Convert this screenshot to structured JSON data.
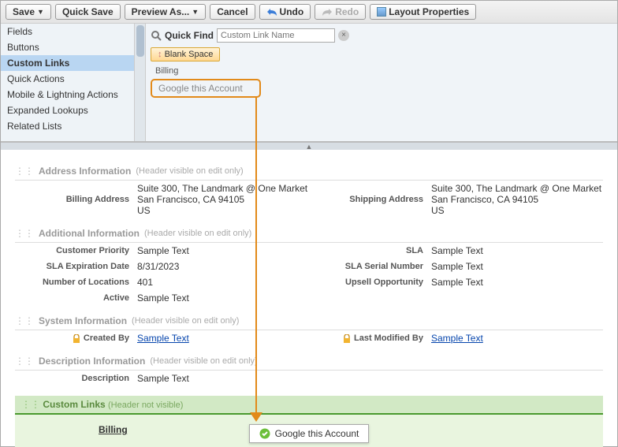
{
  "toolbar": {
    "save": "Save",
    "quicksave": "Quick Save",
    "preview": "Preview As...",
    "cancel": "Cancel",
    "undo": "Undo",
    "redo": "Redo",
    "layoutprops": "Layout Properties"
  },
  "sidebar": {
    "items": [
      "Fields",
      "Buttons",
      "Custom Links",
      "Quick Actions",
      "Mobile & Lightning Actions",
      "Expanded Lookups",
      "Related Lists"
    ],
    "selected": 2
  },
  "palette": {
    "quickfind_label": "Quick Find",
    "quickfind_placeholder": "Custom Link Name",
    "blank_space": "Blank Space",
    "items": [
      "Billing",
      "Google this Account"
    ]
  },
  "sections": [
    {
      "title": "Address Information",
      "note": "(Header visible on edit only)",
      "left": [
        {
          "label": "Billing Address",
          "value": "Suite 300, The Landmark @ One Market\nSan Francisco, CA 94105\nUS"
        }
      ],
      "right": [
        {
          "label": "Shipping Address",
          "value": "Suite 300, The Landmark @ One Market\nSan Francisco, CA 94105\nUS"
        }
      ]
    },
    {
      "title": "Additional Information",
      "note": "(Header visible on edit only)",
      "left": [
        {
          "label": "Customer Priority",
          "value": "Sample Text"
        },
        {
          "label": "SLA Expiration Date",
          "value": "8/31/2023"
        },
        {
          "label": "Number of Locations",
          "value": "401"
        },
        {
          "label": "Active",
          "value": "Sample Text"
        }
      ],
      "right": [
        {
          "label": "SLA",
          "value": "Sample Text"
        },
        {
          "label": "SLA Serial Number",
          "value": "Sample Text"
        },
        {
          "label": "Upsell Opportunity",
          "value": "Sample Text"
        }
      ]
    },
    {
      "title": "System Information",
      "note": "(Header visible on edit only)",
      "left": [
        {
          "label": "Created By",
          "value": "Sample Text",
          "lock": true,
          "link": true
        }
      ],
      "right": [
        {
          "label": "Last Modified By",
          "value": "Sample Text",
          "lock": true,
          "link": true
        }
      ]
    },
    {
      "title": "Description Information",
      "note": "(Header visible on edit only)",
      "left": [
        {
          "label": "Description",
          "value": "Sample Text"
        }
      ],
      "right": []
    }
  ],
  "customlinks": {
    "header": "Custom Links",
    "note": "(Header not visible)",
    "col1": "Billing",
    "col2_drop": "Google this Account"
  },
  "colors": {
    "highlight": "#e28a1a",
    "custlinks_bg": "#e9f5df",
    "custlinks_border": "#4a9a2e"
  }
}
